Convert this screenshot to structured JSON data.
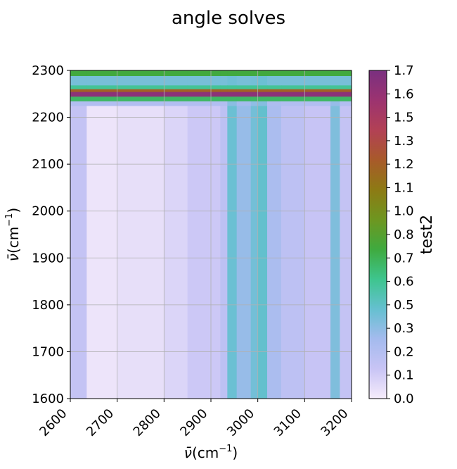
{
  "chart_data": {
    "type": "heatmap",
    "title": "angle solves",
    "xlabel_symbol": "ν̄",
    "xlabel_unit": "(cm",
    "xlabel_exp": "−1",
    "xlabel_close": ")",
    "ylabel_symbol": "ν̄",
    "ylabel_unit": "(cm",
    "ylabel_exp": "−1",
    "ylabel_close": ")",
    "xlim": [
      2600,
      3200
    ],
    "ylim": [
      1600,
      2300
    ],
    "xticks": [
      "2600",
      "2700",
      "2800",
      "2900",
      "3000",
      "3100",
      "3200"
    ],
    "yticks": [
      "1600",
      "1700",
      "1800",
      "1900",
      "2000",
      "2100",
      "2200",
      "2300"
    ],
    "grid": true,
    "colorbar": {
      "label": "test2",
      "range": [
        0.0,
        1.7
      ],
      "ticks": [
        "0.0",
        "0.1",
        "0.2",
        "0.3",
        "0.5",
        "0.6",
        "0.7",
        "0.8",
        "1.0",
        "1.1",
        "1.2",
        "1.3",
        "1.5",
        "1.6",
        "1.7"
      ],
      "tick_values": [
        0.0,
        0.1,
        0.2,
        0.3,
        0.5,
        0.6,
        0.7,
        0.8,
        1.0,
        1.1,
        1.2,
        1.3,
        1.5,
        1.6,
        1.7
      ],
      "colormap": [
        "#f6ecfb",
        "#c8c4f5",
        "#a4bbee",
        "#65c0d0",
        "#3ec58e",
        "#3faa3f",
        "#6e9620",
        "#8d7a14",
        "#a85a2a",
        "#b24155",
        "#9c3370",
        "#7a3080"
      ]
    },
    "bands": {
      "vertical": [
        {
          "x0": 2600,
          "x1": 2635,
          "value": 0.17
        },
        {
          "x0": 2635,
          "x1": 2700,
          "value": 0.03
        },
        {
          "x0": 2700,
          "x1": 2800,
          "value": 0.05
        },
        {
          "x0": 2800,
          "x1": 2850,
          "value": 0.09
        },
        {
          "x0": 2850,
          "x1": 2920,
          "value": 0.14
        },
        {
          "x0": 2920,
          "x1": 2935,
          "value": 0.2
        },
        {
          "x0": 2935,
          "x1": 2955,
          "value": 0.45
        },
        {
          "x0": 2955,
          "x1": 2985,
          "value": 0.34
        },
        {
          "x0": 2985,
          "x1": 3000,
          "value": 0.43
        },
        {
          "x0": 3000,
          "x1": 3020,
          "value": 0.47
        },
        {
          "x0": 3020,
          "x1": 3050,
          "value": 0.28
        },
        {
          "x0": 3050,
          "x1": 3100,
          "value": 0.2
        },
        {
          "x0": 3100,
          "x1": 3155,
          "value": 0.16
        },
        {
          "x0": 3155,
          "x1": 3175,
          "value": 0.4
        },
        {
          "x0": 3175,
          "x1": 3200,
          "value": 0.17
        }
      ],
      "horizontal": [
        {
          "y0": 2288,
          "y1": 2300,
          "value": 0.78
        },
        {
          "y0": 2268,
          "y1": 2288,
          "value": 0.42
        },
        {
          "y0": 2260,
          "y1": 2268,
          "value": 0.6
        },
        {
          "y0": 2254,
          "y1": 2260,
          "value": 1.2
        },
        {
          "y0": 2244,
          "y1": 2254,
          "value": 1.62
        },
        {
          "y0": 2234,
          "y1": 2244,
          "value": 0.7
        },
        {
          "y0": 2225,
          "y1": 2234,
          "value": 0.25
        }
      ]
    }
  }
}
